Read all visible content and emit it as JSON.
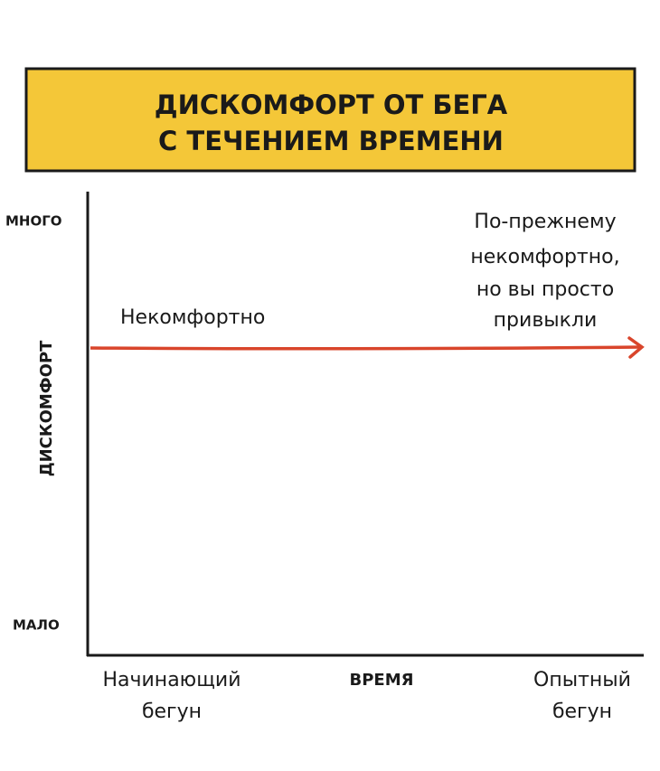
{
  "title": {
    "lines": [
      "ДИСКОМФОРТ ОТ БЕГА",
      "С ТЕЧЕНИЕМ ВРЕМЕНИ"
    ]
  },
  "y_axis": {
    "label": "ДИСКОМФОРТ",
    "high": "МНОГО",
    "low": "МАЛО"
  },
  "x_axis": {
    "label": "ВРЕМЯ",
    "start": [
      "Начинающий",
      "бегун"
    ],
    "end": [
      "Опытный",
      "бегун"
    ]
  },
  "annotations": {
    "line": "Некомфортно",
    "right": [
      "По-прежнему",
      "некомфортно,",
      "но вы просто",
      "привыкли"
    ]
  }
}
